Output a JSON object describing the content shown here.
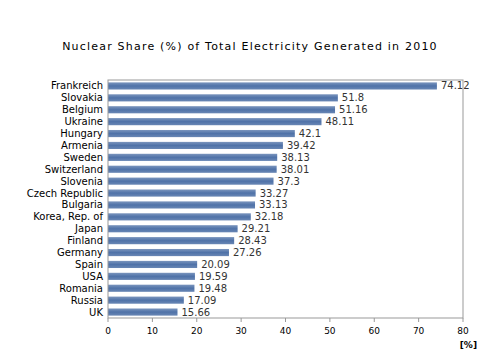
{
  "chart_data": {
    "type": "bar",
    "orientation": "horizontal",
    "title": "Nuclear Share (%) of Total Electricity Generated in 2010",
    "x_label": "[%]",
    "categories": [
      "Frankreich",
      "Slovakia",
      "Belgium",
      "Ukraine",
      "Hungary",
      "Armenia",
      "Sweden",
      "Switzerland",
      "Slovenia",
      "Czech Republic",
      "Bulgaria",
      "Korea, Rep. of",
      "Japan",
      "Finland",
      "Germany",
      "Spain",
      "USA",
      "Romania",
      "Russia",
      "UK"
    ],
    "values": [
      74.12,
      51.8,
      51.16,
      48.11,
      42.1,
      39.42,
      38.13,
      38.01,
      37.3,
      33.27,
      33.13,
      32.18,
      29.21,
      28.43,
      27.26,
      20.09,
      19.59,
      19.48,
      17.09,
      15.66
    ],
    "color": "#4f72a8",
    "xlim": [
      0,
      80
    ],
    "xticks": [
      0,
      10,
      20,
      30,
      40,
      50,
      60,
      70,
      80
    ],
    "grid": false,
    "data_labels": true
  }
}
